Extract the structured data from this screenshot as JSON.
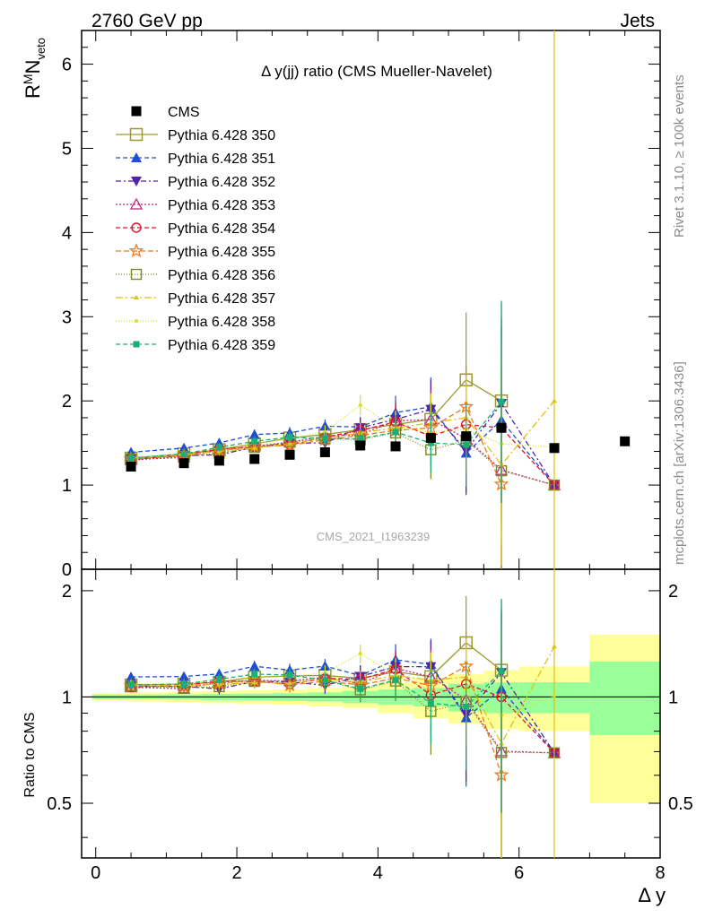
{
  "header": {
    "left": "2760 GeV pp",
    "right": "Jets"
  },
  "side_labels": {
    "rivet": "Rivet 3.1.10, ≥ 100k events",
    "mcplots": "mcplots.cern.ch [arXiv:1306.3436]"
  },
  "chart_data": {
    "type": "scatter",
    "title": "Δ y(jj) ratio (CMS Mueller-Navelet)",
    "watermark": "CMS_2021_I1963239",
    "ylabel_main": "R^M N_veto",
    "ylabel_ratio": "Ratio to CMS",
    "xlabel": "Δ y",
    "xlim": [
      -0.2,
      8.0
    ],
    "ylim_main": [
      0,
      6.4
    ],
    "ylim_ratio": [
      0.35,
      2.3
    ],
    "x_ticks": [
      "0",
      "2",
      "4",
      "6",
      "8"
    ],
    "y_ticks_main": [
      "0",
      "1",
      "2",
      "3",
      "4",
      "5",
      "6"
    ],
    "y_ticks_ratio": [
      "0.5",
      "1",
      "2"
    ],
    "legend_position": "top-left",
    "reference_band": {
      "x_edges": [
        -0.05,
        0.5,
        1.0,
        1.5,
        2.0,
        2.5,
        3.0,
        3.5,
        4.0,
        4.5,
        5.0,
        5.5,
        6.0,
        7.0,
        8.0
      ],
      "inner": [
        [
          0.985,
          1.015
        ],
        [
          0.985,
          1.015
        ],
        [
          0.983,
          1.017
        ],
        [
          0.98,
          1.02
        ],
        [
          0.978,
          1.022
        ],
        [
          0.975,
          1.025
        ],
        [
          0.97,
          1.03
        ],
        [
          0.96,
          1.04
        ],
        [
          0.95,
          1.05
        ],
        [
          0.94,
          1.06
        ],
        [
          0.91,
          1.09
        ],
        [
          0.9,
          1.1
        ],
        [
          0.9,
          1.1
        ],
        [
          0.78,
          1.26
        ]
      ],
      "outer": [
        [
          0.975,
          1.025
        ],
        [
          0.97,
          1.03
        ],
        [
          0.965,
          1.035
        ],
        [
          0.96,
          1.04
        ],
        [
          0.955,
          1.045
        ],
        [
          0.95,
          1.05
        ],
        [
          0.94,
          1.06
        ],
        [
          0.93,
          1.07
        ],
        [
          0.9,
          1.1
        ],
        [
          0.87,
          1.13
        ],
        [
          0.84,
          1.16
        ],
        [
          0.81,
          1.19
        ],
        [
          0.8,
          1.22
        ],
        [
          0.5,
          1.5
        ]
      ]
    },
    "cms": {
      "name": "CMS",
      "x": [
        0.5,
        1.25,
        1.75,
        2.25,
        2.75,
        3.25,
        3.75,
        4.25,
        4.75,
        5.25,
        5.75,
        6.5,
        7.5
      ],
      "y": [
        1.22,
        1.26,
        1.29,
        1.31,
        1.36,
        1.39,
        1.47,
        1.46,
        1.56,
        1.58,
        1.68,
        1.44,
        1.52
      ]
    },
    "x": [
      0.5,
      1.25,
      1.75,
      2.25,
      2.75,
      3.25,
      3.75,
      4.25,
      4.75,
      5.25,
      5.75,
      6.5
    ],
    "series": [
      {
        "name": "Pythia 6.428 350",
        "color": "#999933",
        "marker": "square-open-big",
        "dash": "",
        "values": [
          1.32,
          1.37,
          1.42,
          1.49,
          1.56,
          1.6,
          1.66,
          1.72,
          1.78,
          2.25,
          2.0,
          null
        ],
        "err": [
          0.03,
          0.04,
          0.05,
          0.06,
          0.07,
          0.08,
          0.12,
          0.2,
          0.35,
          0.8,
          1.0,
          0
        ]
      },
      {
        "name": "Pythia 6.428 351",
        "color": "#1f4fd1",
        "marker": "triangle-up",
        "dash": "5,3",
        "values": [
          1.39,
          1.44,
          1.5,
          1.6,
          1.62,
          1.7,
          1.69,
          1.86,
          1.93,
          1.38,
          1.77,
          1.0
        ],
        "err": [
          0.03,
          0.04,
          0.05,
          0.06,
          0.07,
          0.08,
          0.12,
          0.2,
          0.35,
          0.5,
          1.2,
          0
        ]
      },
      {
        "name": "Pythia 6.428 352",
        "color": "#5522aa",
        "marker": "triangle-down",
        "dash": "6,3,2,3",
        "values": [
          1.31,
          1.35,
          1.36,
          1.45,
          1.5,
          1.5,
          1.68,
          1.78,
          1.9,
          1.41,
          1.97,
          1.0
        ],
        "err": [
          0.03,
          0.04,
          0.05,
          0.06,
          0.07,
          0.08,
          0.12,
          0.2,
          0.35,
          0.5,
          1.2,
          0
        ]
      },
      {
        "name": "Pythia 6.428 353",
        "color": "#c0267f",
        "marker": "triangle-up-open",
        "dash": "2,2",
        "values": [
          1.3,
          1.33,
          1.42,
          1.46,
          1.51,
          1.58,
          1.6,
          1.76,
          1.78,
          1.55,
          1.18,
          1.0
        ],
        "err": [
          0.03,
          0.04,
          0.05,
          0.06,
          0.07,
          0.08,
          0.12,
          0.2,
          0.35,
          0.5,
          1.2,
          0
        ]
      },
      {
        "name": "Pythia 6.428 354",
        "color": "#e0102a",
        "marker": "circle-open",
        "dash": "5,3",
        "values": [
          1.3,
          1.36,
          1.43,
          1.45,
          1.48,
          1.57,
          1.65,
          1.75,
          1.58,
          1.72,
          1.68,
          1.0
        ],
        "err": [
          0.03,
          0.04,
          0.05,
          0.06,
          0.07,
          0.08,
          0.12,
          0.2,
          0.35,
          0.5,
          1.2,
          0
        ]
      },
      {
        "name": "Pythia 6.428 355",
        "color": "#f07a1a",
        "marker": "star-open",
        "dash": "6,3",
        "values": [
          1.31,
          1.35,
          1.41,
          1.46,
          1.47,
          1.54,
          1.59,
          1.65,
          1.68,
          1.93,
          1.01,
          null
        ],
        "err": [
          0.03,
          0.04,
          0.05,
          0.06,
          0.07,
          0.08,
          0.12,
          0.2,
          0.35,
          0.5,
          1.2,
          0
        ]
      },
      {
        "name": "Pythia 6.428 356",
        "color": "#778822",
        "marker": "square-open",
        "dash": "1,2",
        "values": [
          1.31,
          1.34,
          1.38,
          1.45,
          1.51,
          1.55,
          1.54,
          1.62,
          1.42,
          1.53,
          1.17,
          1.0
        ],
        "err": [
          0.03,
          0.04,
          0.05,
          0.06,
          0.07,
          0.08,
          0.12,
          0.2,
          0.35,
          0.5,
          1.2,
          0
        ]
      },
      {
        "name": "Pythia 6.428 357",
        "color": "#e0c010",
        "marker": "tri-small",
        "dash": "8,3,2,3",
        "values": [
          1.32,
          1.36,
          1.4,
          1.44,
          1.49,
          1.56,
          1.62,
          1.68,
          1.74,
          1.8,
          1.24,
          2.0
        ],
        "err": [
          0.03,
          0.04,
          0.05,
          0.06,
          0.07,
          0.08,
          0.12,
          0.2,
          0.35,
          0.5,
          1.2,
          6.0
        ]
      },
      {
        "name": "Pythia 6.428 358",
        "color": "#d8e020",
        "marker": "dot",
        "dash": "1,2",
        "values": [
          1.33,
          1.37,
          1.44,
          1.49,
          1.55,
          1.63,
          1.95,
          1.68,
          1.63,
          1.66,
          1.49,
          1.45
        ],
        "err": [
          0.03,
          0.04,
          0.05,
          0.06,
          0.07,
          0.08,
          0.12,
          0.2,
          0.35,
          0.5,
          1.2,
          0
        ]
      },
      {
        "name": "Pythia 6.428 359",
        "color": "#18b078",
        "marker": "square-small",
        "dash": "5,3",
        "values": [
          1.32,
          1.37,
          1.45,
          1.52,
          1.57,
          1.55,
          1.55,
          1.63,
          1.5,
          1.48,
          1.99,
          null
        ],
        "err": [
          0.03,
          0.04,
          0.05,
          0.06,
          0.07,
          0.08,
          0.12,
          0.2,
          0.35,
          0.5,
          1.2,
          0
        ]
      }
    ]
  }
}
